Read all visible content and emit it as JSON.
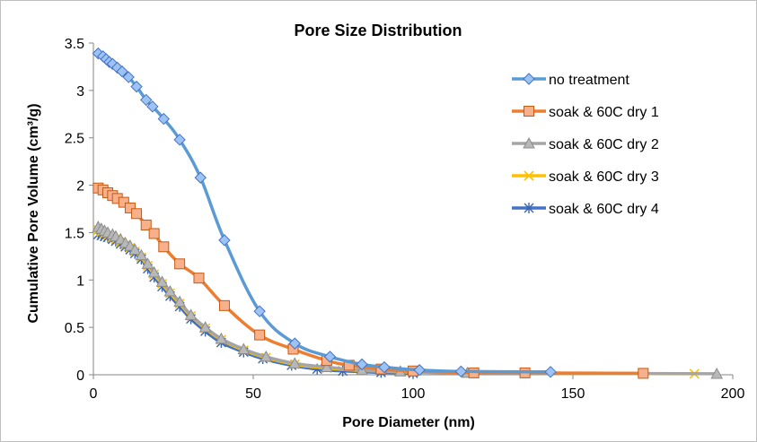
{
  "chart_data": {
    "type": "scatter",
    "title": "Pore Size Distribution",
    "xlabel": "Pore Diameter (nm)",
    "ylabel": "Cumulative Pore Volume (cm³/g)",
    "xlim": [
      0,
      200
    ],
    "ylim": [
      0,
      3.5
    ],
    "xticks": [
      "0",
      "50",
      "100",
      "150",
      "200"
    ],
    "yticks": [
      "0",
      "0.5",
      "1",
      "1.5",
      "2",
      "2.5",
      "3",
      "3.5"
    ],
    "grid": false,
    "legend": "right",
    "series": [
      {
        "name": "no treatment",
        "line_color": "#5B9BD5",
        "marker": "diamond",
        "marker_fill": "#9DC3F5",
        "marker_stroke": "#4472C4",
        "points": [
          [
            1.5,
            3.39
          ],
          [
            3,
            3.36
          ],
          [
            4,
            3.33
          ],
          [
            5,
            3.3
          ],
          [
            6,
            3.28
          ],
          [
            7.5,
            3.24
          ],
          [
            9,
            3.2
          ],
          [
            11,
            3.14
          ],
          [
            13.5,
            3.04
          ],
          [
            16.5,
            2.9
          ],
          [
            18.5,
            2.83
          ],
          [
            22,
            2.7
          ],
          [
            27,
            2.48
          ],
          [
            33.5,
            2.08
          ],
          [
            41,
            1.42
          ],
          [
            52,
            0.67
          ],
          [
            63,
            0.33
          ],
          [
            74,
            0.19
          ],
          [
            84,
            0.11
          ],
          [
            91,
            0.08
          ],
          [
            102,
            0.05
          ],
          [
            115,
            0.035
          ],
          [
            143,
            0.03
          ]
        ]
      },
      {
        "name": "soak & 60C dry 1",
        "line_color": "#ED7D31",
        "marker": "square",
        "marker_fill": "#F8B08A",
        "marker_stroke": "#C55A11",
        "points": [
          [
            1.5,
            1.97
          ],
          [
            3,
            1.95
          ],
          [
            4.5,
            1.92
          ],
          [
            6,
            1.89
          ],
          [
            7.5,
            1.86
          ],
          [
            9.5,
            1.82
          ],
          [
            11.5,
            1.76
          ],
          [
            13.5,
            1.7
          ],
          [
            16.5,
            1.58
          ],
          [
            19,
            1.49
          ],
          [
            22,
            1.35
          ],
          [
            27,
            1.17
          ],
          [
            33,
            1.02
          ],
          [
            41,
            0.73
          ],
          [
            52,
            0.42
          ],
          [
            62.5,
            0.27
          ],
          [
            73,
            0.15
          ],
          [
            80,
            0.1
          ],
          [
            90,
            0.06
          ],
          [
            100,
            0.04
          ],
          [
            119,
            0.02
          ],
          [
            135,
            0.02
          ],
          [
            172,
            0.015
          ]
        ]
      },
      {
        "name": "soak & 60C dry 2",
        "line_color": "#A5A5A5",
        "marker": "triangle",
        "marker_fill": "#B8B8B8",
        "marker_stroke": "#8C8C8C",
        "points": [
          [
            1.5,
            1.56
          ],
          [
            2.5,
            1.54
          ],
          [
            3.5,
            1.52
          ],
          [
            4.5,
            1.5
          ],
          [
            6,
            1.48
          ],
          [
            7,
            1.46
          ],
          [
            8.5,
            1.43
          ],
          [
            10,
            1.39
          ],
          [
            11.5,
            1.36
          ],
          [
            13,
            1.32
          ],
          [
            15,
            1.26
          ],
          [
            17,
            1.17
          ],
          [
            19,
            1.08
          ],
          [
            21.5,
            0.98
          ],
          [
            24,
            0.88
          ],
          [
            27,
            0.77
          ],
          [
            30.5,
            0.63
          ],
          [
            35,
            0.5
          ],
          [
            40,
            0.38
          ],
          [
            47,
            0.27
          ],
          [
            54,
            0.19
          ],
          [
            63,
            0.12
          ],
          [
            73,
            0.08
          ],
          [
            84,
            0.05
          ],
          [
            96,
            0.035
          ],
          [
            117,
            0.02
          ],
          [
            195,
            0.01
          ]
        ]
      },
      {
        "name": "soak & 60C dry 3",
        "line_color": "#FFC000",
        "marker": "x",
        "marker_fill": "#FFC000",
        "marker_stroke": "#FFC000",
        "points": [
          [
            1.5,
            1.53
          ],
          [
            2.5,
            1.51
          ],
          [
            3.5,
            1.49
          ],
          [
            4.5,
            1.47
          ],
          [
            6,
            1.45
          ],
          [
            7,
            1.43
          ],
          [
            8.5,
            1.4
          ],
          [
            10,
            1.37
          ],
          [
            11.5,
            1.34
          ],
          [
            13,
            1.3
          ],
          [
            15,
            1.24
          ],
          [
            17,
            1.15
          ],
          [
            19,
            1.06
          ],
          [
            21.5,
            0.96
          ],
          [
            24,
            0.86
          ],
          [
            27,
            0.75
          ],
          [
            30.5,
            0.62
          ],
          [
            35,
            0.49
          ],
          [
            40,
            0.37
          ],
          [
            47,
            0.26
          ],
          [
            54,
            0.18
          ],
          [
            63,
            0.11
          ],
          [
            73,
            0.07
          ],
          [
            84,
            0.045
          ],
          [
            96,
            0.03
          ],
          [
            117,
            0.02
          ],
          [
            188,
            0.01
          ]
        ]
      },
      {
        "name": "soak & 60C dry 4",
        "line_color": "#4472C4",
        "marker": "asterisk",
        "marker_fill": "#4472C4",
        "marker_stroke": "#3B64AD",
        "points": [
          [
            1.5,
            1.48
          ],
          [
            2.5,
            1.47
          ],
          [
            3.5,
            1.46
          ],
          [
            4.5,
            1.45
          ],
          [
            6,
            1.43
          ],
          [
            7,
            1.41
          ],
          [
            8.5,
            1.38
          ],
          [
            10,
            1.35
          ],
          [
            11.5,
            1.32
          ],
          [
            13,
            1.28
          ],
          [
            15,
            1.22
          ],
          [
            17,
            1.12
          ],
          [
            19,
            1.03
          ],
          [
            21.5,
            0.93
          ],
          [
            24,
            0.83
          ],
          [
            27,
            0.72
          ],
          [
            30.5,
            0.59
          ],
          [
            35,
            0.46
          ],
          [
            40,
            0.34
          ],
          [
            47,
            0.24
          ],
          [
            53,
            0.17
          ],
          [
            62,
            0.1
          ],
          [
            70,
            0.06
          ],
          [
            78,
            0.04
          ],
          [
            90,
            0.025
          ],
          [
            100,
            0.015
          ]
        ]
      }
    ]
  }
}
